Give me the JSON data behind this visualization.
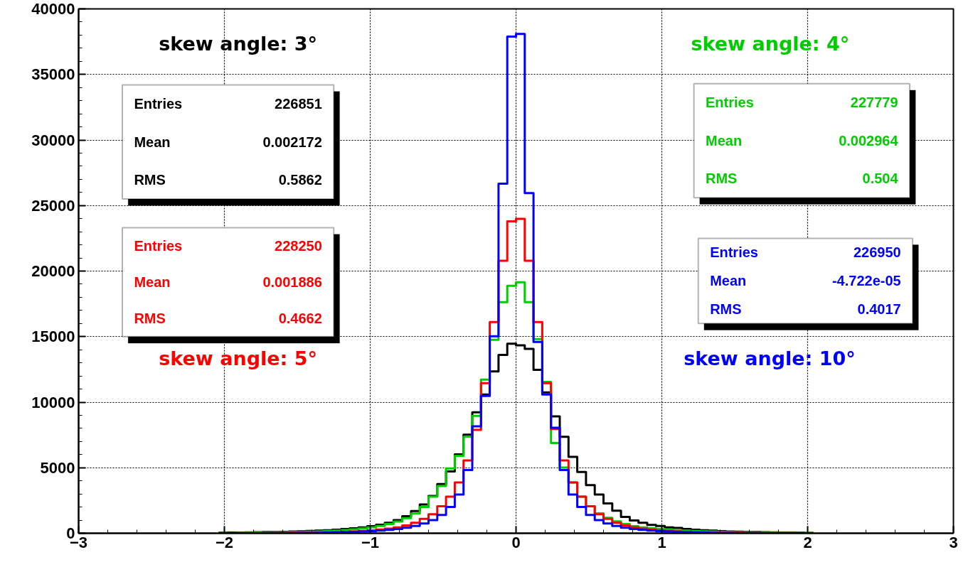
{
  "chart_data": {
    "type": "histogram",
    "bins": [
      -2.04,
      -1.98,
      -1.92,
      -1.86,
      -1.8,
      -1.74,
      -1.68,
      -1.62,
      -1.56,
      -1.5,
      -1.44,
      -1.38,
      -1.32,
      -1.26,
      -1.2,
      -1.14,
      -1.08,
      -1.02,
      -0.96,
      -0.9,
      -0.84,
      -0.78,
      -0.72,
      -0.66,
      -0.6,
      -0.54,
      -0.48,
      -0.42,
      -0.36,
      -0.3,
      -0.24,
      -0.18,
      -0.12,
      -0.06,
      0,
      0.06,
      0.12,
      0.18,
      0.24,
      0.3,
      0.36,
      0.42,
      0.48,
      0.54,
      0.6,
      0.66,
      0.72,
      0.78,
      0.84,
      0.9,
      0.96,
      1.02,
      1.08,
      1.14,
      1.2,
      1.26,
      1.32,
      1.38,
      1.44,
      1.5,
      1.56,
      1.62,
      1.68,
      1.74,
      1.8,
      1.86,
      1.92,
      1.98,
      2.04
    ],
    "series": [
      {
        "name": "skew angle: 3°",
        "color": "#000000",
        "values": [
          40,
          50,
          60,
          70,
          80,
          90,
          100,
          110,
          130,
          150,
          170,
          200,
          230,
          270,
          320,
          380,
          450,
          540,
          650,
          800,
          1000,
          1300,
          1700,
          2200,
          2850,
          3760,
          4720,
          6010,
          7520,
          9230,
          10580,
          12350,
          13600,
          14460,
          14340,
          14070,
          12460,
          10740,
          8910,
          7360,
          5820,
          4670,
          3670,
          2950,
          2270,
          1720,
          1250,
          980,
          800,
          640,
          560,
          450,
          400,
          330,
          270,
          230,
          200,
          160,
          140,
          120,
          100,
          90,
          80,
          70,
          60,
          50,
          40,
          30
        ]
      },
      {
        "name": "skew angle: 4°",
        "color": "#00cc00",
        "values": [
          15,
          20,
          30,
          40,
          50,
          60,
          70,
          80,
          90,
          100,
          120,
          140,
          170,
          200,
          250,
          300,
          370,
          450,
          550,
          700,
          900,
          1150,
          1500,
          2000,
          2790,
          3600,
          4940,
          5910,
          7360,
          8950,
          11720,
          14760,
          17630,
          18880,
          19150,
          17630,
          14810,
          11540,
          6890,
          5010,
          3870,
          2790,
          2060,
          1520,
          1180,
          910,
          710,
          540,
          450,
          380,
          320,
          270,
          230,
          200,
          170,
          150,
          130,
          110,
          90,
          80,
          70,
          60,
          50,
          40,
          30,
          25,
          20,
          15
        ]
      },
      {
        "name": "skew angle: 5°",
        "color": "#ff0000",
        "values": [
          5,
          5,
          10,
          10,
          15,
          20,
          25,
          30,
          35,
          40,
          50,
          60,
          70,
          90,
          110,
          140,
          180,
          220,
          280,
          350,
          450,
          600,
          800,
          1100,
          1450,
          2060,
          2790,
          3870,
          5550,
          7890,
          11450,
          16110,
          20780,
          23800,
          23980,
          20780,
          16110,
          11450,
          7960,
          5550,
          3870,
          2790,
          2060,
          1450,
          1100,
          800,
          600,
          450,
          350,
          280,
          220,
          180,
          140,
          110,
          90,
          70,
          60,
          50,
          40,
          35,
          30,
          25,
          20,
          15,
          10,
          10,
          5,
          5
        ]
      },
      {
        "name": "skew angle: 10°",
        "color": "#0000ff",
        "values": [
          0,
          0,
          5,
          5,
          5,
          10,
          10,
          15,
          20,
          25,
          30,
          40,
          50,
          60,
          80,
          100,
          130,
          160,
          200,
          260,
          330,
          420,
          550,
          750,
          1000,
          1400,
          2000,
          2950,
          4830,
          8160,
          10470,
          15030,
          26670,
          37890,
          38090,
          25950,
          14600,
          10580,
          8050,
          4830,
          2950,
          2000,
          1400,
          1000,
          750,
          550,
          420,
          330,
          260,
          200,
          160,
          130,
          100,
          80,
          60,
          50,
          40,
          30,
          25,
          20,
          15,
          10,
          10,
          5,
          5,
          5,
          0,
          0
        ]
      }
    ],
    "annotations": [
      "Entries",
      "226851",
      "Mean",
      "0.002172",
      "RMS",
      "0.5862",
      "Entries",
      "227779",
      "Mean",
      "0.002964",
      "RMS",
      "0.504",
      "Entries",
      "228250",
      "Mean",
      "0.001886",
      "RMS",
      "0.4662",
      "Entries",
      "226950",
      "Mean",
      "-4.722e-05",
      "RMS",
      "0.4017"
    ],
    "xlim": [
      -3,
      3
    ],
    "xticks": [
      -3,
      -2,
      -1,
      0,
      1,
      2,
      3
    ],
    "ylim": [
      0,
      40000
    ],
    "yticks": [
      0,
      5000,
      10000,
      15000,
      20000,
      25000,
      30000,
      35000,
      40000
    ],
    "grid": true,
    "legend": false
  }
}
